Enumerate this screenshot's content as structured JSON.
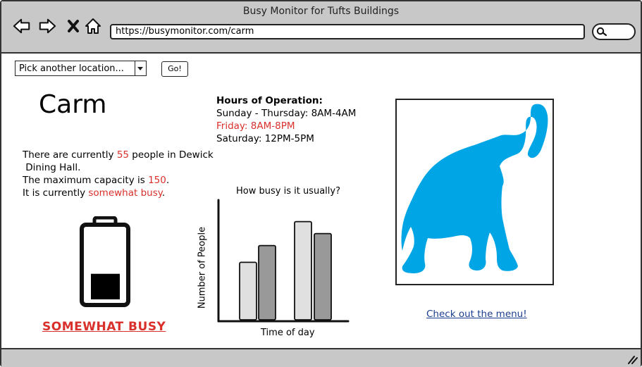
{
  "window": {
    "title": "Busy Monitor for Tufts Buildings"
  },
  "browser": {
    "url": "https://busymonitor.com/carm"
  },
  "icons": [
    "back-arrow-icon",
    "forward-arrow-icon",
    "close-x-icon",
    "home-icon",
    "search-icon",
    "battery-icon",
    "elephant-image",
    "resize-grip-icon"
  ],
  "location_picker": {
    "selected": "Pick another location...",
    "go_label": "Go!"
  },
  "location": {
    "name": "Carm"
  },
  "occupancy": {
    "line1_prefix": "There are currently ",
    "count": "55",
    "line1_suffix": " people in Dewick",
    "line2": " Dining Hall.",
    "line3_prefix": "The maximum capacity is ",
    "capacity": "150",
    "line3_suffix": ".",
    "line4_prefix": "It is currently ",
    "status": "somewhat busy",
    "line4_suffix": ".",
    "level": 0.37,
    "status_label": "SOMEWHAT BUSY"
  },
  "hours": {
    "heading": "Hours of Operation:",
    "lines": [
      {
        "text": "Sunday - Thursday: 8AM-4AM",
        "color": "#000000"
      },
      {
        "text": "Friday: 8AM-8PM",
        "color": "#d9302c"
      },
      {
        "text": "Saturday: 12PM-5PM",
        "color": "#000000"
      }
    ]
  },
  "chart_data": {
    "type": "bar",
    "title": "How busy is it usually?",
    "xlabel": "Time of day",
    "ylabel": "Number of People",
    "ylim": [
      0,
      100
    ],
    "grid": false,
    "bars": [
      {
        "value": 48,
        "color": "#e0e0e0"
      },
      {
        "value": 62,
        "color": "#999999"
      },
      {
        "value": 82,
        "color": "#e0e0e0"
      },
      {
        "value": 72,
        "color": "#999999"
      }
    ]
  },
  "colors": {
    "accent_red": "#d9302c",
    "elephant_blue": "#00a5e6",
    "chrome_gray": "#c8c8c8",
    "link_blue": "#1b3d8f"
  },
  "menu_link": {
    "label": "Check out the menu!"
  }
}
